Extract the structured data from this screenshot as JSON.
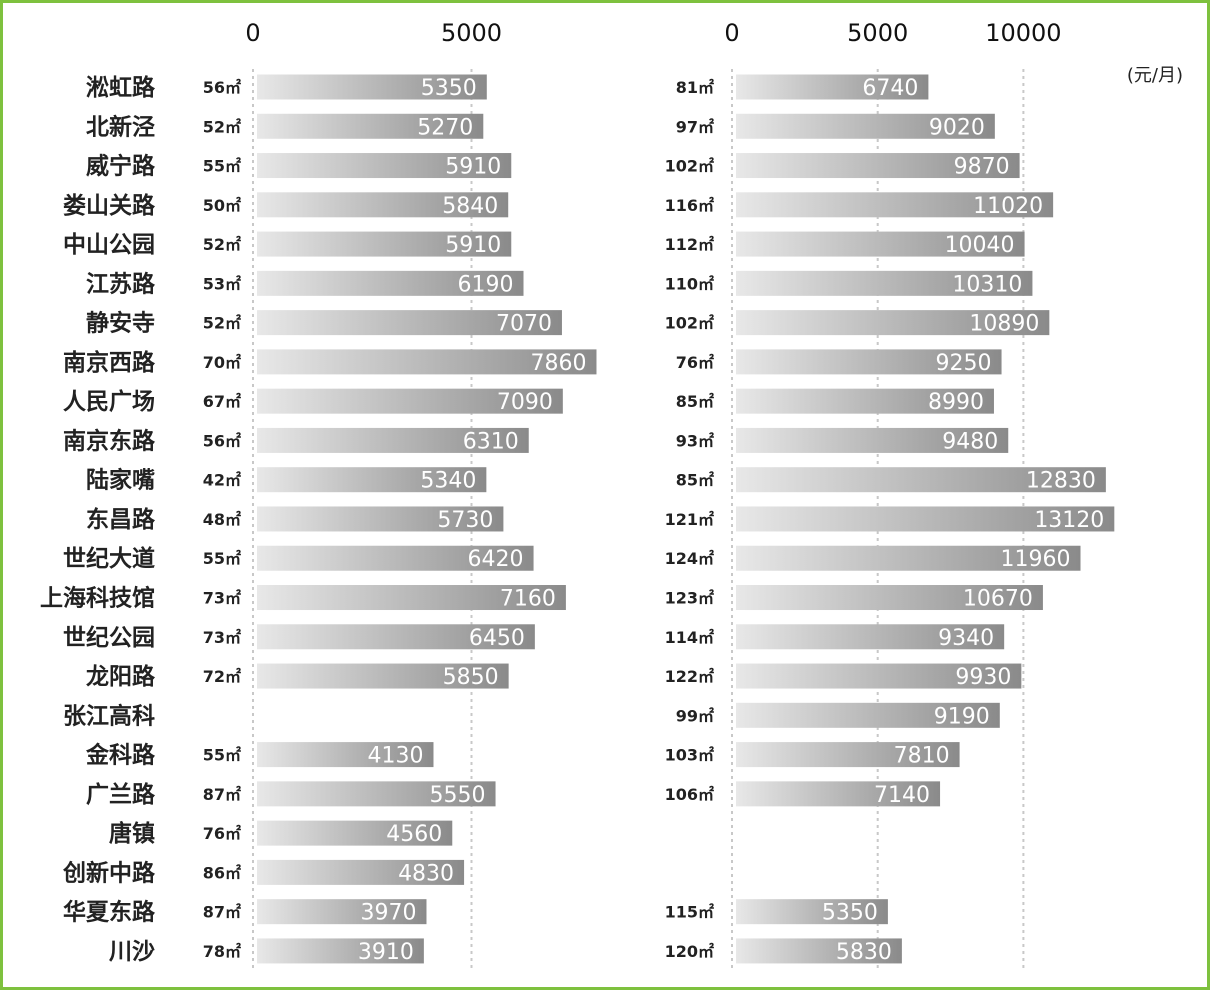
{
  "chart_data": [
    {
      "type": "bar",
      "orientation": "horizontal",
      "title": "",
      "xlim": [
        0,
        7860
      ],
      "ticks": [
        "0",
        "5000"
      ],
      "grid": true,
      "categories": [
        "淞虹路",
        "北新泾",
        "威宁路",
        "娄山关路",
        "中山公园",
        "江苏路",
        "静安寺",
        "南京西路",
        "人民广场",
        "南京东路",
        "陆家嘴",
        "东昌路",
        "世纪大道",
        "上海科技馆",
        "世纪公园",
        "龙阳路",
        "张江高科",
        "金科路",
        "广兰路",
        "唐镇",
        "创新中路",
        "华夏东路",
        "川沙"
      ],
      "areas": [
        "56㎡",
        "52㎡",
        "55㎡",
        "50㎡",
        "52㎡",
        "53㎡",
        "52㎡",
        "70㎡",
        "67㎡",
        "56㎡",
        "42㎡",
        "48㎡",
        "55㎡",
        "73㎡",
        "73㎡",
        "72㎡",
        "",
        "55㎡",
        "87㎡",
        "76㎡",
        "86㎡",
        "87㎡",
        "78㎡"
      ],
      "values": [
        5350,
        5270,
        5910,
        5840,
        5910,
        6190,
        7070,
        7860,
        7090,
        6310,
        5340,
        5730,
        6420,
        7160,
        6450,
        5850,
        null,
        4130,
        5550,
        4560,
        4830,
        3970,
        3910
      ]
    },
    {
      "type": "bar",
      "orientation": "horizontal",
      "title": "",
      "xlim": [
        0,
        13120
      ],
      "ticks": [
        "0",
        "5000",
        "10000"
      ],
      "grid": true,
      "unit": "(元/月)",
      "categories": [
        "淞虹路",
        "北新泾",
        "威宁路",
        "娄山关路",
        "中山公园",
        "江苏路",
        "静安寺",
        "南京西路",
        "人民广场",
        "南京东路",
        "陆家嘴",
        "东昌路",
        "世纪大道",
        "上海科技馆",
        "世纪公园",
        "龙阳路",
        "张江高科",
        "金科路",
        "广兰路",
        "唐镇",
        "创新中路",
        "华夏东路",
        "川沙"
      ],
      "areas": [
        "81㎡",
        "97㎡",
        "102㎡",
        "116㎡",
        "112㎡",
        "110㎡",
        "102㎡",
        "76㎡",
        "85㎡",
        "93㎡",
        "85㎡",
        "121㎡",
        "124㎡",
        "123㎡",
        "114㎡",
        "122㎡",
        "99㎡",
        "103㎡",
        "106㎡",
        "",
        "",
        "115㎡",
        "120㎡"
      ],
      "values": [
        6740,
        9020,
        9870,
        11020,
        10040,
        10310,
        10890,
        9250,
        8990,
        9480,
        12830,
        13120,
        11960,
        10670,
        9340,
        9930,
        9190,
        7810,
        7140,
        null,
        null,
        5350,
        5830
      ]
    }
  ],
  "colors": {
    "border": "#7ec13e",
    "bar_light": "#e6e6e6",
    "bar_dark": "#8c8c8c",
    "grid": "#c8c8c8"
  }
}
